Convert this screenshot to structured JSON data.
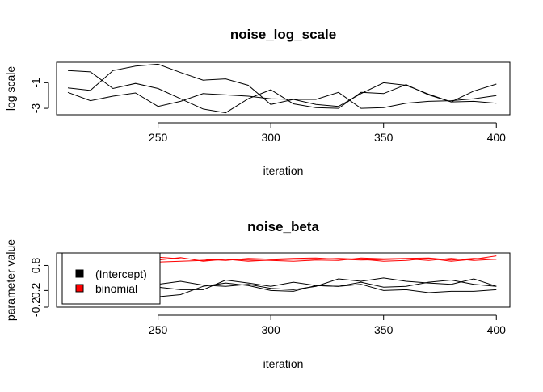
{
  "chart_data": [
    {
      "type": "line",
      "title": "noise_log_scale",
      "xlabel": "iteration",
      "ylabel": "log scale",
      "xlim": [
        205,
        406
      ],
      "ylim": [
        -3.5,
        0.6
      ],
      "x_ticks": [
        250,
        300,
        350,
        400
      ],
      "x_tick_labels": [
        "250",
        "300",
        "350",
        "400"
      ],
      "y_ticks": [
        -1,
        -3
      ],
      "y_tick_labels": [
        "-1",
        "-3"
      ],
      "x": [
        210,
        220,
        230,
        240,
        250,
        260,
        270,
        280,
        290,
        300,
        310,
        320,
        330,
        340,
        350,
        360,
        370,
        380,
        390,
        400
      ],
      "series": [
        {
          "color": "#000000",
          "values": [
            -0.05,
            -0.15,
            -1.45,
            -1.05,
            -1.45,
            -2.25,
            -3.05,
            -3.35,
            -2.25,
            -1.55,
            -2.65,
            -2.95,
            -3.0,
            -1.75,
            -1.85,
            -1.15,
            -1.95,
            -2.5,
            -2.45,
            -2.6
          ]
        },
        {
          "color": "#000000",
          "values": [
            -1.75,
            -2.4,
            -2.05,
            -1.8,
            -2.85,
            -2.45,
            -1.85,
            -1.95,
            -2.05,
            -2.25,
            -2.3,
            -2.3,
            -1.75,
            -3.0,
            -2.95,
            -2.6,
            -2.45,
            -2.4,
            -2.25,
            -2.0
          ]
        },
        {
          "color": "#000000",
          "values": [
            -1.4,
            -1.6,
            -0.05,
            0.3,
            0.45,
            -0.2,
            -0.8,
            -0.7,
            -1.2,
            -2.7,
            -2.3,
            -2.7,
            -2.85,
            -1.85,
            -1.0,
            -1.2,
            -1.9,
            -2.5,
            -1.65,
            -1.1
          ]
        }
      ],
      "grid": false,
      "legend": null
    },
    {
      "type": "line",
      "title": "noise_beta",
      "xlabel": "iteration",
      "ylabel": "parameter value",
      "xlim": [
        205,
        406
      ],
      "ylim": [
        -0.2,
        1.1
      ],
      "x_ticks": [
        250,
        300,
        350,
        400
      ],
      "x_tick_labels": [
        "250",
        "300",
        "350",
        "400"
      ],
      "y_ticks": [
        -0.2,
        0.2,
        0.8
      ],
      "y_tick_labels": [
        "-0.2",
        "0.2",
        "0.8"
      ],
      "x": [
        210,
        220,
        230,
        240,
        250,
        260,
        270,
        280,
        290,
        300,
        310,
        320,
        330,
        340,
        350,
        360,
        370,
        380,
        390,
        400
      ],
      "series": [
        {
          "name": "(Intercept)",
          "color": "#000000",
          "values": [
            0.2,
            0.1,
            0.3,
            0.35,
            0.05,
            0.1,
            0.3,
            0.38,
            0.32,
            0.2,
            0.18,
            0.32,
            0.3,
            0.4,
            0.28,
            0.3,
            0.4,
            0.45,
            0.35,
            0.3
          ]
        },
        {
          "color": "#000000",
          "values": [
            0.3,
            0.0,
            0.35,
            0.45,
            0.35,
            0.42,
            0.33,
            0.3,
            0.35,
            0.25,
            0.22,
            0.3,
            0.48,
            0.42,
            0.5,
            0.42,
            0.38,
            0.35,
            0.48,
            0.3
          ]
        },
        {
          "color": "#000000",
          "values": [
            0.15,
            0.2,
            0.25,
            0.32,
            0.28,
            0.22,
            0.22,
            0.45,
            0.38,
            0.3,
            0.4,
            0.32,
            0.3,
            0.35,
            0.2,
            0.22,
            0.15,
            0.18,
            0.18,
            0.22
          ]
        },
        {
          "name": "binomial",
          "color": "#ff0000",
          "values": [
            0.95,
            0.98,
            0.92,
            0.97,
            1.0,
            0.96,
            0.95,
            0.92,
            0.97,
            0.95,
            0.97,
            0.98,
            0.95,
            0.93,
            0.94,
            0.96,
            0.92,
            0.97,
            0.92,
            0.95
          ]
        },
        {
          "color": "#ff0000",
          "values": [
            0.9,
            0.88,
            0.94,
            0.9,
            0.93,
            0.99,
            0.9,
            0.95,
            0.93,
            0.92,
            0.9,
            0.93,
            0.92,
            0.98,
            0.96,
            0.97,
            0.98,
            0.93,
            0.97,
            0.95
          ]
        },
        {
          "color": "#ff0000",
          "values": [
            0.93,
            0.9,
            0.9,
            0.92,
            0.88,
            0.9,
            0.92,
            0.95,
            0.9,
            0.93,
            0.95,
            0.95,
            0.97,
            0.95,
            0.9,
            0.92,
            0.97,
            0.9,
            0.95,
            1.03
          ]
        }
      ],
      "grid": false,
      "legend": {
        "position": "left",
        "entries": [
          {
            "label": "(Intercept)",
            "color": "#000000"
          },
          {
            "label": "binomial",
            "color": "#ff0000"
          }
        ]
      }
    }
  ]
}
